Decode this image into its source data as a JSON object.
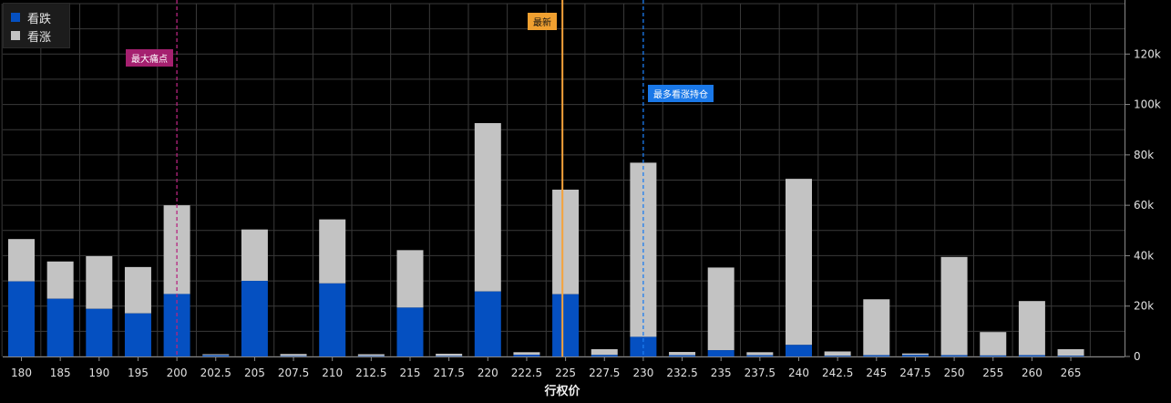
{
  "chart_data": {
    "type": "bar",
    "stacked": true,
    "xlabel": "行权价",
    "ylabel": "",
    "ylim": [
      0,
      140000
    ],
    "yticks": [
      0,
      20000,
      40000,
      60000,
      80000,
      100000,
      120000
    ],
    "ytick_labels": [
      "0",
      "20k",
      "40k",
      "60k",
      "80k",
      "100k",
      "120k"
    ],
    "y_axis_side": "right",
    "grid": true,
    "legend_position": "top-left",
    "categories": [
      "180",
      "185",
      "190",
      "195",
      "200",
      "202.5",
      "205",
      "207.5",
      "210",
      "212.5",
      "215",
      "217.5",
      "220",
      "222.5",
      "225",
      "227.5",
      "230",
      "232.5",
      "235",
      "237.5",
      "240",
      "242.5",
      "245",
      "247.5",
      "250",
      "255",
      "260",
      "265"
    ],
    "series": [
      {
        "name": "看跌",
        "color": "#0550c1",
        "values": [
          29800,
          22900,
          18900,
          17100,
          24800,
          500,
          30000,
          200,
          29000,
          200,
          19400,
          200,
          25800,
          700,
          24700,
          600,
          7800,
          500,
          2500,
          500,
          4600,
          300,
          500,
          600,
          500,
          400,
          500,
          300
        ]
      },
      {
        "name": "看涨",
        "color": "#c3c3c3",
        "values": [
          16800,
          14800,
          20900,
          18400,
          35200,
          400,
          20400,
          800,
          25400,
          700,
          22800,
          900,
          66800,
          1000,
          41500,
          2300,
          69100,
          1300,
          32800,
          1200,
          65900,
          1700,
          22200,
          600,
          39000,
          9300,
          21500,
          2600
        ]
      }
    ],
    "markers": [
      {
        "label": "最大痛点",
        "x": "200",
        "color": "#b5257f",
        "style": "dashed",
        "tag_color": "#a5206f"
      },
      {
        "label": "最新",
        "x": "224.8",
        "color": "#f5a33b",
        "style": "solid",
        "tag_color": "#f0a030"
      },
      {
        "label": "最多看涨持仓",
        "x": "230",
        "color": "#1c7cf0",
        "style": "dashed",
        "tag_color": "#1a78e8"
      }
    ]
  }
}
